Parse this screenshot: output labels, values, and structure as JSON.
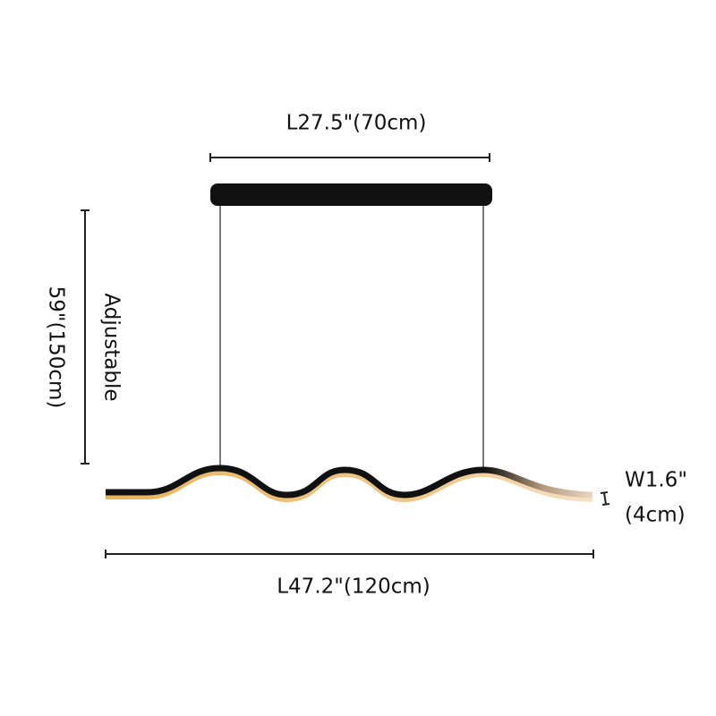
{
  "dimensions": {
    "canopy_length": "L27.5\"(70cm)",
    "drop_length": "59\"(150cm)",
    "drop_note": "Adjustable",
    "width_inch": "W1.6\"",
    "width_cm": "(4cm)",
    "fixture_length": "L47.2\"(120cm)"
  }
}
